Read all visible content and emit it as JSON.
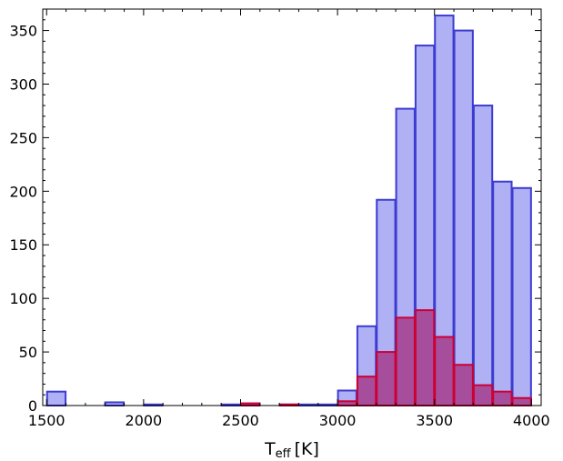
{
  "chart_data": {
    "type": "bar",
    "title": "",
    "xlabel": {
      "main": "T",
      "sub": "eff",
      "unit": "[K]"
    },
    "ylabel": "",
    "xlim": [
      1480,
      4050
    ],
    "ylim": [
      0,
      370
    ],
    "x_ticks": [
      1500,
      2000,
      2500,
      3000,
      3500,
      4000
    ],
    "y_ticks": [
      0,
      50,
      100,
      150,
      200,
      250,
      300,
      350
    ],
    "grid": false,
    "bin_edges": [
      1500,
      1600,
      1700,
      1800,
      1900,
      2000,
      2100,
      2200,
      2300,
      2400,
      2500,
      2600,
      2700,
      2800,
      2900,
      3000,
      3100,
      3200,
      3300,
      3400,
      3500,
      3600,
      3700,
      3800,
      3900,
      4000
    ],
    "series": [
      {
        "color_fill": "#b0b0f5",
        "color_edge": "#3c3cd2",
        "values": [
          13,
          0,
          0,
          3,
          0,
          1,
          0,
          0,
          0,
          1,
          2,
          0,
          1,
          1,
          1,
          14,
          74,
          192,
          277,
          336,
          364,
          350,
          280,
          209,
          203
        ]
      },
      {
        "color_fill": "#a64d9c",
        "color_edge": "#cc0033",
        "values": [
          0,
          0,
          0,
          0,
          0,
          0,
          0,
          0,
          0,
          0,
          2,
          0,
          1,
          0,
          0,
          4,
          27,
          50,
          82,
          89,
          64,
          38,
          19,
          13,
          7
        ]
      }
    ]
  }
}
